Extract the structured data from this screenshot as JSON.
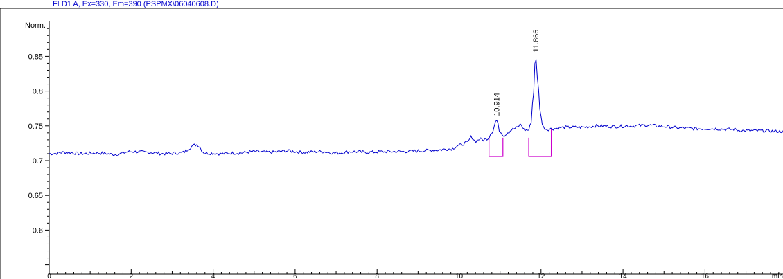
{
  "chart_data": {
    "type": "line",
    "title": "FLD1 A, Ex=330, Em=390 (PSPMX\\06040608.D)",
    "ylabel": "Norm.",
    "xlabel": "min",
    "xlim": [
      0,
      18.1
    ],
    "ylim": [
      0.545,
      0.915
    ],
    "x_ticks": [
      "0",
      "2",
      "4",
      "6",
      "8",
      "10",
      "12",
      "14",
      "16"
    ],
    "y_ticks": [
      "0.6",
      "0.65",
      "0.7",
      "0.75",
      "0.8",
      "0.85"
    ],
    "peaks": [
      {
        "label": "10.914",
        "rt": 10.914,
        "apex": 0.758,
        "start": 10.73,
        "end": 11.07,
        "baseline": 0.706
      },
      {
        "label": "11.866",
        "rt": 11.866,
        "apex": 0.85,
        "start": 11.7,
        "end": 12.25,
        "baseline": 0.706
      }
    ],
    "series": [
      {
        "color": "#0000cc",
        "x": [
          0.0,
          0.4,
          0.8,
          1.2,
          1.6,
          2.0,
          2.4,
          2.8,
          3.2,
          3.6,
          3.8,
          4.2,
          4.6,
          5.0,
          5.4,
          5.8,
          6.2,
          6.6,
          7.0,
          7.4,
          7.8,
          8.2,
          8.6,
          9.0,
          9.4,
          9.8,
          10.0,
          10.2,
          10.3,
          10.4,
          10.5,
          10.6,
          10.7,
          10.8,
          10.914,
          11.0,
          11.1,
          11.2,
          11.3,
          11.4,
          11.5,
          11.6,
          11.7,
          11.75,
          11.8,
          11.866,
          11.92,
          11.98,
          12.05,
          12.15,
          12.3,
          12.6,
          13.0,
          13.4,
          13.8,
          14.2,
          14.6,
          15.0,
          15.4,
          15.8,
          16.2,
          16.6,
          17.0,
          17.4,
          17.8,
          18.1
        ],
        "values": [
          0.71,
          0.712,
          0.71,
          0.711,
          0.709,
          0.713,
          0.712,
          0.71,
          0.711,
          0.723,
          0.711,
          0.71,
          0.711,
          0.713,
          0.712,
          0.714,
          0.712,
          0.713,
          0.711,
          0.713,
          0.712,
          0.713,
          0.713,
          0.714,
          0.715,
          0.717,
          0.722,
          0.726,
          0.734,
          0.728,
          0.731,
          0.73,
          0.732,
          0.741,
          0.758,
          0.742,
          0.736,
          0.741,
          0.745,
          0.747,
          0.752,
          0.744,
          0.744,
          0.753,
          0.785,
          0.85,
          0.815,
          0.77,
          0.748,
          0.745,
          0.746,
          0.748,
          0.748,
          0.75,
          0.749,
          0.75,
          0.751,
          0.749,
          0.747,
          0.746,
          0.746,
          0.745,
          0.743,
          0.743,
          0.742,
          0.742
        ]
      }
    ]
  }
}
